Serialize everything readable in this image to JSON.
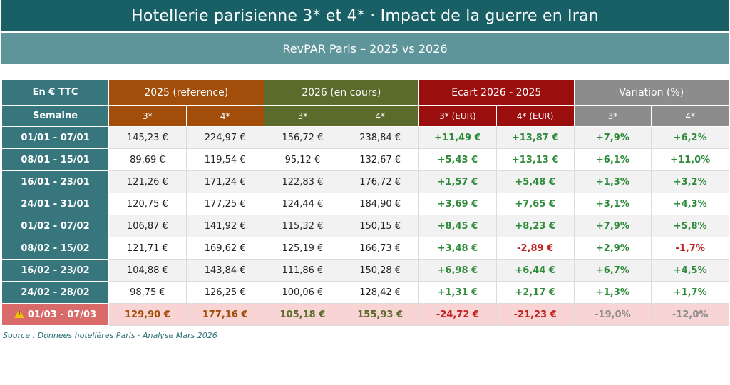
{
  "header": {
    "title": "Hotellerie parisienne 3* et 4*  ·  Impact de la guerre en Iran",
    "subtitle": "RevPAR Paris –  2025 vs 2026"
  },
  "table": {
    "corner_label": "En € TTC",
    "week_label": "Semaine",
    "groups": {
      "g2025": "2025  (reference)",
      "g2026": "2026  (en cours)",
      "ecart": "Ecart  2026 - 2025",
      "variation": "Variation (%)"
    },
    "sub_headers": {
      "y2025_3": "3*",
      "y2025_4": "4*",
      "y2026_3": "3*",
      "y2026_4": "4*",
      "ecart_3": "3* (EUR)",
      "ecart_4": "4* (EUR)",
      "var_3": "3*",
      "var_4": "4*"
    },
    "rows": [
      {
        "week": "01/01 - 07/01",
        "v2025_3": "145,23 €",
        "v2025_4": "224,97 €",
        "v2026_3": "156,72 €",
        "v2026_4": "238,84 €",
        "ecart_3": "+11,49 €",
        "ecart_4": "+13,87 €",
        "var_3": "+7,9%",
        "var_4": "+6,2%"
      },
      {
        "week": "08/01 - 15/01",
        "v2025_3": "89,69 €",
        "v2025_4": "119,54 €",
        "v2026_3": "95,12 €",
        "v2026_4": "132,67 €",
        "ecart_3": "+5,43 €",
        "ecart_4": "+13,13 €",
        "var_3": "+6,1%",
        "var_4": "+11,0%"
      },
      {
        "week": "16/01 - 23/01",
        "v2025_3": "121,26 €",
        "v2025_4": "171,24 €",
        "v2026_3": "122,83 €",
        "v2026_4": "176,72 €",
        "ecart_3": "+1,57 €",
        "ecart_4": "+5,48 €",
        "var_3": "+1,3%",
        "var_4": "+3,2%"
      },
      {
        "week": "24/01 - 31/01",
        "v2025_3": "120,75 €",
        "v2025_4": "177,25 €",
        "v2026_3": "124,44 €",
        "v2026_4": "184,90 €",
        "ecart_3": "+3,69 €",
        "ecart_4": "+7,65 €",
        "var_3": "+3,1%",
        "var_4": "+4,3%"
      },
      {
        "week": "01/02 - 07/02",
        "v2025_3": "106,87 €",
        "v2025_4": "141,92 €",
        "v2026_3": "115,32 €",
        "v2026_4": "150,15 €",
        "ecart_3": "+8,45 €",
        "ecart_4": "+8,23 €",
        "var_3": "+7,9%",
        "var_4": "+5,8%"
      },
      {
        "week": "08/02 - 15/02",
        "v2025_3": "121,71 €",
        "v2025_4": "169,62 €",
        "v2026_3": "125,19 €",
        "v2026_4": "166,73 €",
        "ecart_3": "+3,48 €",
        "ecart_4": "-2,89 €",
        "var_3": "+2,9%",
        "var_4": "-1,7%"
      },
      {
        "week": "16/02 - 23/02",
        "v2025_3": "104,88 €",
        "v2025_4": "143,84 €",
        "v2026_3": "111,86 €",
        "v2026_4": "150,28 €",
        "ecart_3": "+6,98 €",
        "ecart_4": "+6,44 €",
        "var_3": "+6,7%",
        "var_4": "+4,5%"
      },
      {
        "week": "24/02 - 28/02",
        "v2025_3": "98,75 €",
        "v2025_4": "126,25 €",
        "v2026_3": "100,06 €",
        "v2026_4": "128,42 €",
        "ecart_3": "+1,31 €",
        "ecart_4": "+2,17 €",
        "var_3": "+1,3%",
        "var_4": "+1,7%"
      }
    ],
    "highlight_row": {
      "icon": "warning-icon",
      "week": "01/03 - 07/03",
      "v2025_3": "129,90 €",
      "v2025_4": "177,16 €",
      "v2026_3": "105,18 €",
      "v2026_4": "155,93 €",
      "ecart_3": "-24,72 €",
      "ecart_4": "-21,23 €",
      "var_3": "-19,0%",
      "var_4": "-12,0%"
    }
  },
  "source": "Source : Donnees hotelières Paris  ·  Analyse Mars 2026",
  "colors": {
    "title_bg": "#185f66",
    "subtitle_bg": "#5e959b",
    "week_col": "#37767d",
    "y2025": "#a24e0a",
    "y2026": "#5b6b2c",
    "ecart": "#9a0e0e",
    "variation": "#8c8c8c",
    "positive": "#2e8b3a",
    "negative": "#c02020",
    "highlight_bg": "#f9d4d4",
    "highlight_week": "#d96a6a"
  }
}
